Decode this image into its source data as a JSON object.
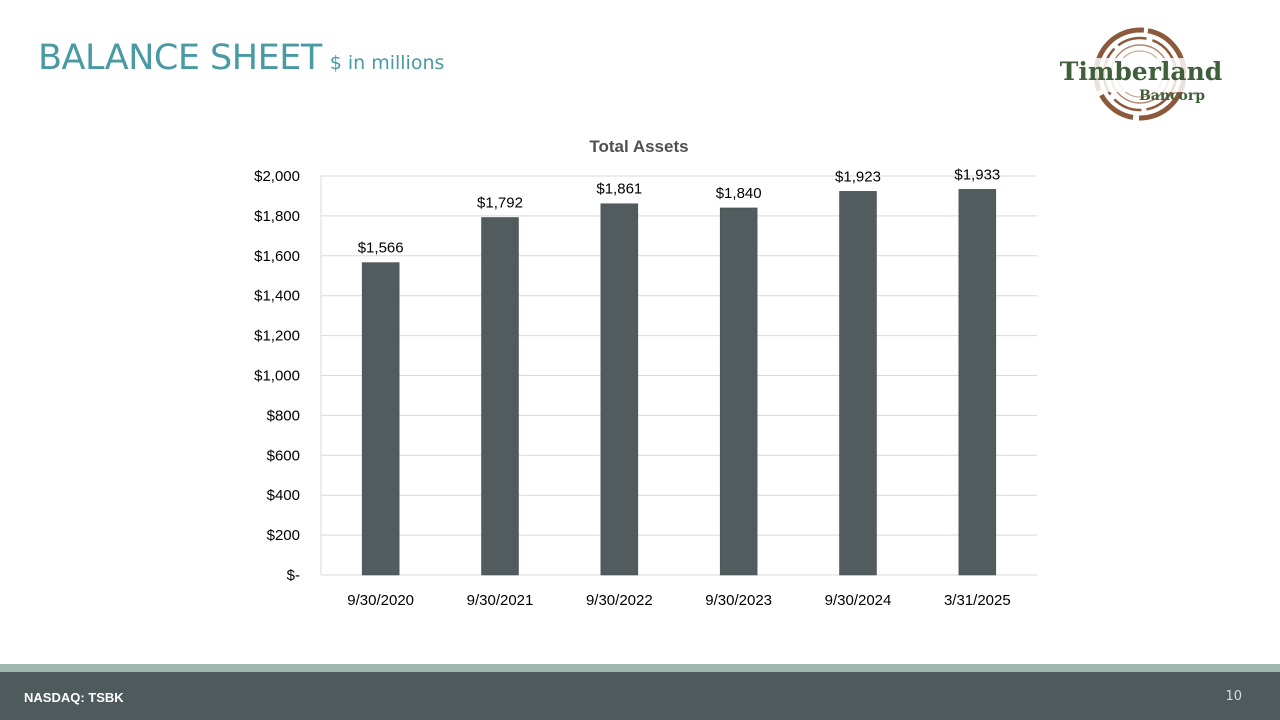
{
  "slide": {
    "title": "BALANCE SHEET",
    "subtitle": "$ in millions"
  },
  "logo": {
    "name": "Timberland",
    "sub": "Bancorp"
  },
  "footer": {
    "ticker": "NASDAQ: TSBK",
    "page": "10"
  },
  "colors": {
    "title": "#4a9aa3",
    "bar": "#525b5e",
    "footer": "#4f5a5c",
    "footer_stripe": "#9eb7b0",
    "logo_text": "#3f5e3b",
    "logo_ring": "#8b5a3c"
  },
  "chart_data": {
    "type": "bar",
    "title": "Total Assets",
    "categories": [
      "9/30/2020",
      "9/30/2021",
      "9/30/2022",
      "9/30/2023",
      "9/30/2024",
      "3/31/2025"
    ],
    "values": [
      1566,
      1792,
      1861,
      1840,
      1923,
      1933
    ],
    "value_labels": [
      "$1,566",
      "$1,792",
      "$1,861",
      "$1,840",
      "$1,923",
      "$1,933"
    ],
    "ylim": [
      0,
      2000
    ],
    "yticks": [
      0,
      200,
      400,
      600,
      800,
      1000,
      1200,
      1400,
      1600,
      1800,
      2000
    ],
    "ytick_labels": [
      "$-",
      "$200",
      "$400",
      "$600",
      "$800",
      "$1,000",
      "$1,200",
      "$1,400",
      "$1,600",
      "$1,800",
      "$2,000"
    ],
    "grid": true,
    "legend": "none"
  }
}
